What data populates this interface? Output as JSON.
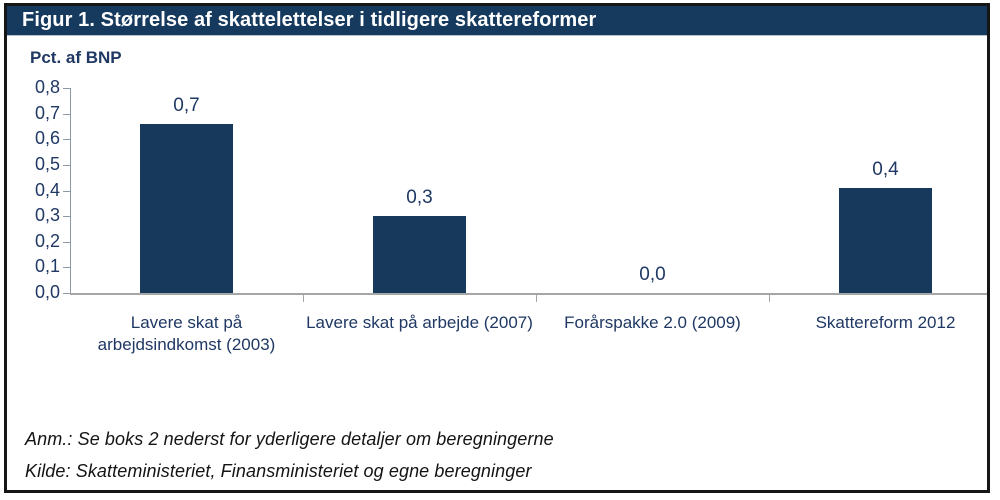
{
  "figure": {
    "title": "Figur 1. Størrelse af skattelettelser i tidligere skattereformer"
  },
  "chart_data": {
    "type": "bar",
    "title": "Figur 1. Størrelse af skattelettelser i tidligere skattereformer",
    "ylabel": "Pct. af BNP",
    "xlabel": "",
    "categories": [
      "Lavere skat på arbejdsindkomst (2003)",
      "Lavere skat på arbejde (2007)",
      "Forårspakke 2.0 (2009)",
      "Skattereform 2012"
    ],
    "values": [
      0.66,
      0.3,
      0.0,
      0.41
    ],
    "data_labels": [
      "0,7",
      "0,3",
      "0,0",
      "0,4"
    ],
    "y_ticks": [
      "0,0",
      "0,1",
      "0,2",
      "0,3",
      "0,4",
      "0,5",
      "0,6",
      "0,7",
      "0,8"
    ],
    "ylim": [
      0,
      0.8
    ],
    "grid": false,
    "legend": "none",
    "decimal_separator": ","
  },
  "notes": {
    "anm": "Anm.: Se boks 2 nederst for yderligere detaljer om beregningerne",
    "kilde": "Kilde: Skatteministeriet, Finansministeriet og egne beregninger"
  },
  "colors": {
    "titlebar_bg": "#16395e",
    "titlebar_text": "#ffffff",
    "bar_fill": "#17395c",
    "label_text": "#1f3864",
    "x_axis_line": "#a6a6a6",
    "y_axis_line": "#8f9aa8",
    "frame_border": "#161616"
  }
}
